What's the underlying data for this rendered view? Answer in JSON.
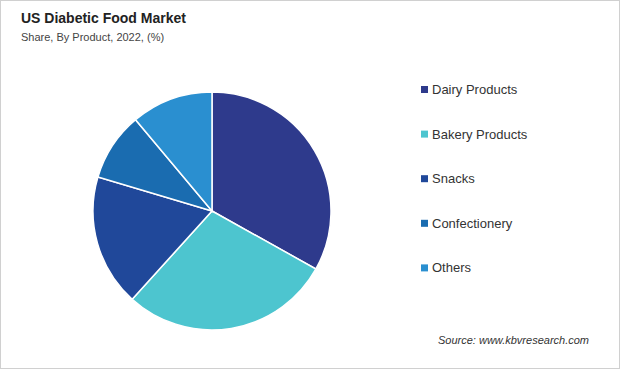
{
  "chart_data": {
    "type": "pie",
    "title": "US Diabetic Food Market",
    "subtitle": "Share, By Product, 2022, (%)",
    "source": "Source: www.kbvresearch.com",
    "categories": [
      "Dairy Products",
      "Bakery Products",
      "Snacks",
      "Confectionery",
      "Others"
    ],
    "values": [
      33.1,
      28.6,
      17.9,
      9.3,
      11.1
    ],
    "colors": [
      "#2e3a8c",
      "#4dc5cf",
      "#20489a",
      "#1a6cb0",
      "#2a8fd0"
    ],
    "legend": "right",
    "tick_labels": false,
    "data_labels": false
  }
}
